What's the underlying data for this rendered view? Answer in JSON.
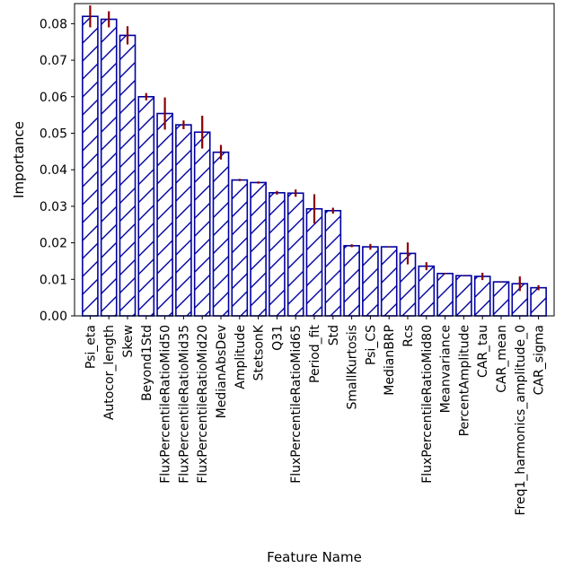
{
  "chart_data": {
    "type": "bar",
    "xlabel": "Feature Name",
    "ylabel": "Importance",
    "ylim": [
      0,
      0.0855
    ],
    "yticks": [
      0.0,
      0.01,
      0.02,
      0.03,
      0.04,
      0.05,
      0.06,
      0.07,
      0.08
    ],
    "ytick_labels": [
      "0.00",
      "0.01",
      "0.02",
      "0.03",
      "0.04",
      "0.05",
      "0.06",
      "0.07",
      "0.08"
    ],
    "categories": [
      "Psi_eta",
      "Autocor_length",
      "Skew",
      "Beyond1Std",
      "FluxPercentileRatioMid50",
      "FluxPercentileRatioMid35",
      "FluxPercentileRatioMid20",
      "MedianAbsDev",
      "Amplitude",
      "StetsonK",
      "Q31",
      "FluxPercentileRatioMid65",
      "Period_fit",
      "Std",
      "SmallKurtosis",
      "Psi_CS",
      "MedianBRP",
      "Rcs",
      "FluxPercentileRatioMid80",
      "Meanvariance",
      "PercentAmplitude",
      "CAR_tau",
      "CAR_mean",
      "Freq1_harmonics_amplitude_0",
      "CAR_sigma"
    ],
    "values": [
      0.082,
      0.0812,
      0.0768,
      0.06,
      0.0554,
      0.0523,
      0.0503,
      0.0448,
      0.0372,
      0.0365,
      0.0337,
      0.0336,
      0.0293,
      0.0288,
      0.0192,
      0.0189,
      0.0189,
      0.0171,
      0.0136,
      0.0116,
      0.011,
      0.0108,
      0.0093,
      0.0088,
      0.0077
    ],
    "errors": [
      0.003,
      0.0022,
      0.0025,
      0.001,
      0.0044,
      0.0012,
      0.0045,
      0.002,
      0.0003,
      0.0003,
      0.0005,
      0.001,
      0.004,
      0.0008,
      0.0004,
      0.0008,
      0.0001,
      0.003,
      0.0011,
      0.0002,
      0.0001,
      0.001,
      0.0001,
      0.002,
      0.0007
    ],
    "grid": false,
    "colors": {
      "bar_edge": "#0000a0",
      "bar_fill": "#ffffff",
      "hatch": "#0000a0",
      "error_bar": "#8b0000",
      "axis": "#000000"
    }
  }
}
